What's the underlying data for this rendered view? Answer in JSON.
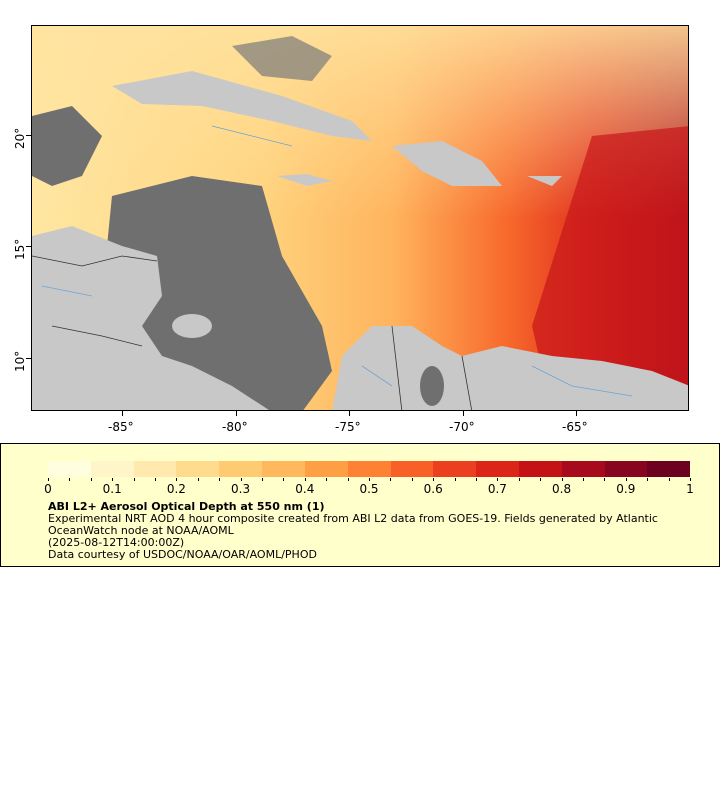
{
  "map": {
    "y_ticks": [
      "20°",
      "15°",
      "10°"
    ],
    "x_ticks": [
      "-85°",
      "-80°",
      "-75°",
      "-70°",
      "-65°"
    ]
  },
  "legend": {
    "scale_labels": [
      "0",
      "0.1",
      "0.2",
      "0.3",
      "0.4",
      "0.5",
      "0.6",
      "0.7",
      "0.8",
      "0.9",
      "1"
    ],
    "colors": [
      "#ffffe0",
      "#fff5c8",
      "#ffe9ad",
      "#ffdb8e",
      "#ffcb72",
      "#ffb95c",
      "#ff9f45",
      "#ff8134",
      "#f96028",
      "#ec3f20",
      "#dc2419",
      "#c51217",
      "#a80a1d",
      "#870521",
      "#6d0220"
    ],
    "title": "ABI L2+ Aerosol Optical Depth at 550 nm (1)",
    "description": "Experimental NRT AOD 4 hour composite created from ABI L2 data from GOES-19. Fields generated by Atlantic OceanWatch node at NOAA/AOML",
    "timestamp": "(2025-08-12T14:00:00Z)",
    "credit": "Data courtesy of USDOC/NOAA/OAR/AOML/PHOD"
  }
}
